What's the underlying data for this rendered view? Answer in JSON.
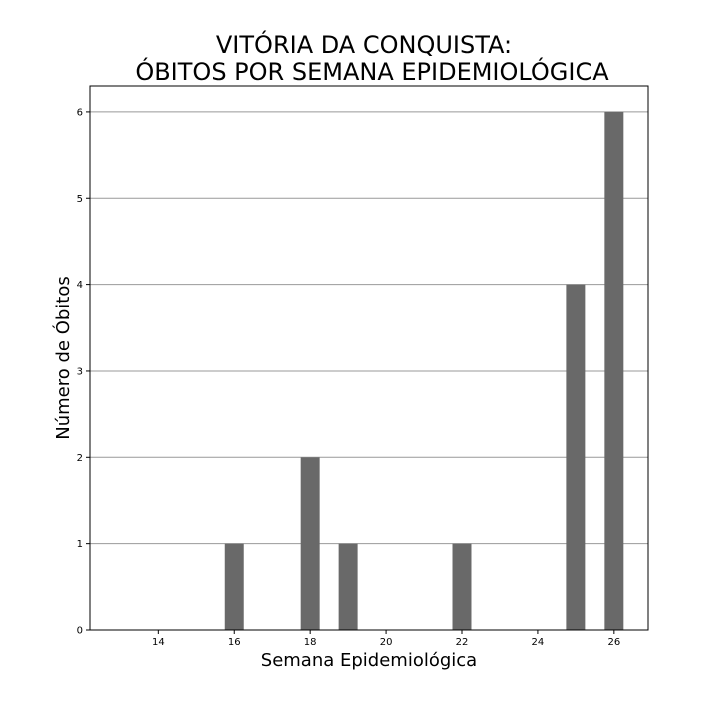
{
  "chart_data": {
    "type": "bar",
    "title": [
      "VITÓRIA DA CONQUISTA:",
      "ÓBITOS POR SEMANA EPIDEMIOLÓGICA"
    ],
    "xlabel": "Semana Epidemiológica",
    "ylabel": "Número de Óbitos",
    "x": [
      16,
      18,
      19,
      22,
      25,
      26
    ],
    "values": [
      1,
      2,
      1,
      1,
      4,
      6
    ],
    "xlim": [
      12.2,
      26.9
    ],
    "ylim": [
      0,
      6.3
    ],
    "xticks": [
      14,
      16,
      18,
      20,
      22,
      24,
      26
    ],
    "yticks": [
      0,
      1,
      2,
      3,
      4,
      5,
      6
    ],
    "bar_width_units": 0.5,
    "bar_color": "#696969",
    "grid": "y",
    "grid_color": "#999999"
  }
}
